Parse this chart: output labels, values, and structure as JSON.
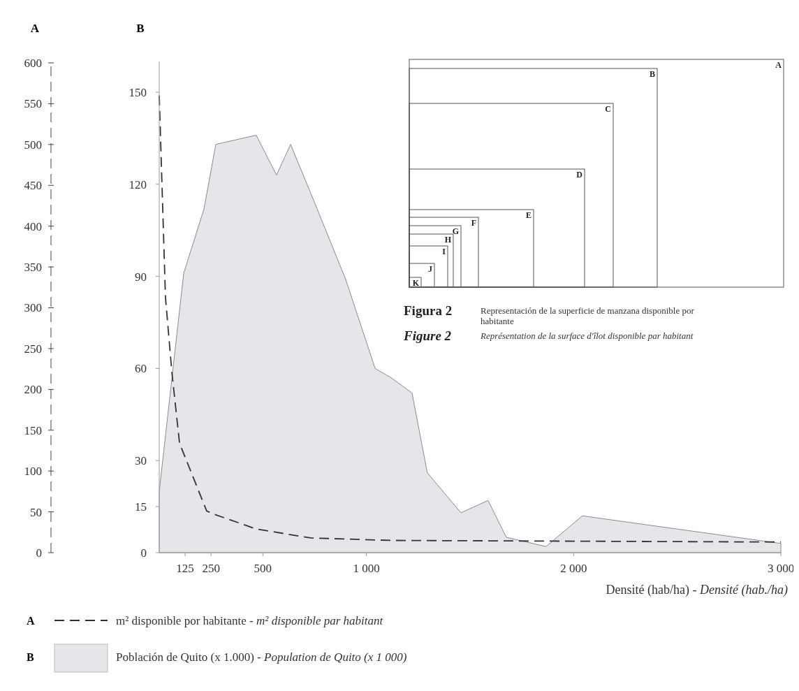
{
  "chart_data": {
    "type": "area",
    "ylabel": "A",
    "y2label": "B",
    "xlabel": "Densité (hab/ha) - Densité (hab./ha)",
    "xlim": [
      0,
      3000
    ],
    "xticks": [
      125,
      250,
      500,
      {
        "value": 1000,
        "label": "1 000"
      },
      {
        "value": 2000,
        "label": "2 000"
      },
      {
        "value": 3000,
        "label": "3 000"
      }
    ],
    "ylim": [
      0,
      600
    ],
    "yticks": [
      0,
      50,
      100,
      150,
      200,
      250,
      300,
      350,
      400,
      450,
      500,
      550,
      600
    ],
    "y2lim": [
      0,
      160
    ],
    "y2ticks": [
      0,
      15,
      30,
      60,
      90,
      120,
      150
    ],
    "grid": false,
    "legend": "bottom",
    "series": [
      {
        "name": "Población de Quito (x 1.000) - Population de Quito (x 1 000)",
        "axis": "y2",
        "color": "#e6e6ea",
        "x": [
          0,
          118,
          216,
          273,
          468,
          566,
          634,
          762,
          900,
          1042,
          1119,
          1220,
          1294,
          1456,
          1587,
          1675,
          1867,
          2042,
          3000
        ],
        "values": [
          20,
          91,
          112,
          133,
          136,
          123,
          133,
          112,
          89,
          60,
          57,
          52,
          26,
          13,
          17,
          5,
          2,
          12,
          3
        ]
      },
      {
        "name": "m² disponible por habitante - m² disponible par habitant",
        "type": "line",
        "axis": "y",
        "line_style": "dashed",
        "color": "#333333",
        "x": [
          0,
          30,
          61,
          98,
          229,
          266,
          468,
          731,
          1119,
          3000
        ],
        "values": [
          560,
          313,
          221,
          134,
          51,
          47,
          29,
          18,
          15,
          13
        ]
      }
    ],
    "annotations": [
      "A",
      "B",
      "C",
      "D",
      "E",
      "F",
      "G",
      "H",
      "I",
      "J",
      "K",
      "Figura 2",
      "Representación de la superficie de manzana disponible por habitante",
      "Figure 2",
      "Représentation de la surface d'îlot disponible par habitant"
    ]
  }
}
